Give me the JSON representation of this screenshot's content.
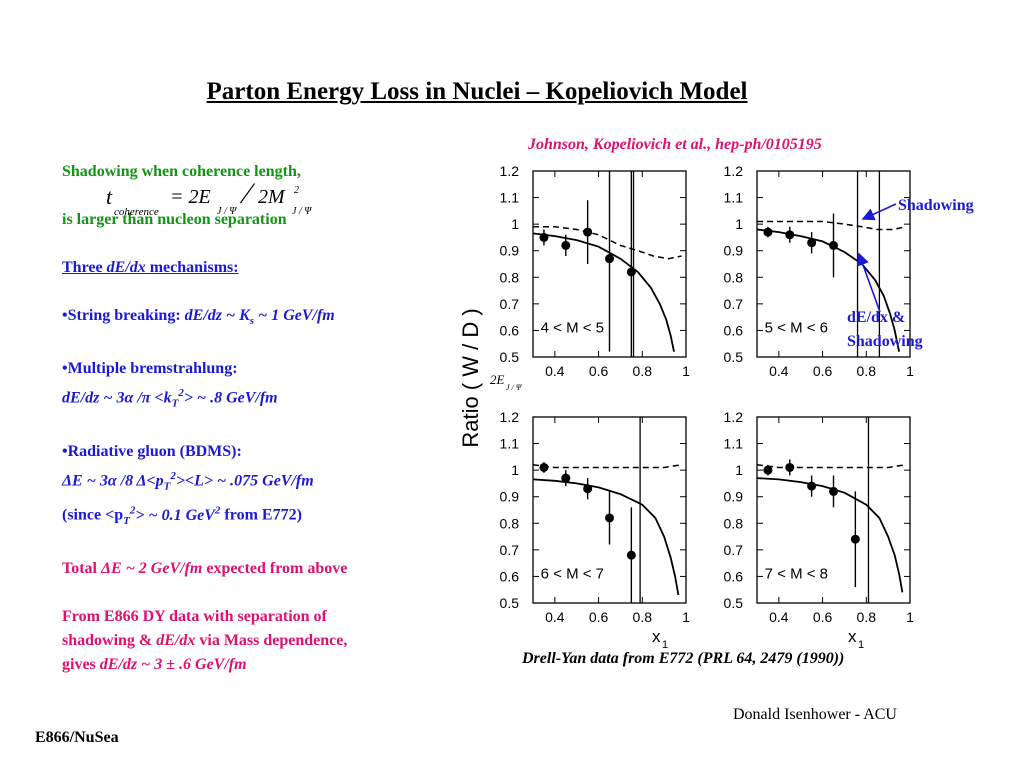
{
  "slide": {
    "title": "Parton Energy Loss in Nuclei – Kopeliovich Model",
    "citation": "Johnson, Kopeliovich et al., hep-ph/0105195",
    "caption": "Drell-Yan data from E772 (PRL 64, 2479 (1990))",
    "author": "Donald Isenhower - ACU",
    "footer": "E866/NuSea"
  },
  "left_text": {
    "line1": "Shadowing when coherence length,",
    "formula": {
      "t": "t",
      "sub": "coherence",
      "eq": "= 2E",
      "sub2": "J / Ψ",
      "slash": "⁄",
      "den": "2M",
      "sup": "2",
      "sub3": "J / Ψ"
    },
    "line2": "is larger than nucleon separation",
    "three_a": "Three ",
    "three_b": "dE/dx",
    "three_c": " mechanisms:",
    "string_a": "•String breaking: ",
    "string_b": "dE/dz ~ K",
    "string_sub": "s",
    "string_c": " ~ 1 GeV/fm",
    "brems_a": "•Multiple bremstrahlung:",
    "brems_b": "dE/dz ~ 3α /π <k",
    "brems_sub": "T",
    "brems_sup": "2",
    "brems_c": "> ~ .8 GeV/fm",
    "rad_a": "•Radiative gluon (BDMS):",
    "rad_b": "ΔE ~ 3α /8 Δ<p",
    "rad_sub": "T",
    "rad_sup": "2",
    "rad_c": "><L> ~ .075 GeV/fm",
    "since_a": "(since <p",
    "since_sub": "T",
    "since_sup": "2",
    "since_b": "> ~ 0.1 GeV",
    "since_sup2": "2",
    "since_c": " from E772)",
    "total_a": "Total ",
    "total_b": "ΔE ~ 2 GeV/fm",
    "total_c": "  expected from above",
    "from1": "From E866 DY data with separation of",
    "from2_a": "shadowing & ",
    "from2_b": "dE/dx",
    "from2_c": " via Mass dependence,",
    "from3_a": "gives ",
    "from3_b": "dE/dz ~ 3 ± .6 GeV/fm"
  },
  "annotations": {
    "shadowing": "Shadowing",
    "dedx_line1": "dE/dx &",
    "dedx_line2": "Shadowing",
    "two_e": "2E",
    "two_e_sub": "J / Ψ"
  },
  "colors": {
    "green": "#149414",
    "blue": "#1a1ad6",
    "magenta": "#e0106e"
  },
  "chart_data": {
    "type": "scatter",
    "ylabel": "Ratio ( W / D )",
    "xlabel_main": "x",
    "xlabel_sub": "1",
    "xlim": [
      0.3,
      1.0
    ],
    "ylim": [
      0.5,
      1.2
    ],
    "xticks": [
      "0.4",
      "0.6",
      "0.8",
      "1"
    ],
    "yticks": [
      "0.5",
      "0.6",
      "0.7",
      "0.8",
      "0.9",
      "1",
      "1.1",
      "1.2"
    ],
    "panels": [
      {
        "label": "4 < M < 5",
        "points": [
          {
            "x": 0.35,
            "y": 0.95,
            "err": 0.03
          },
          {
            "x": 0.45,
            "y": 0.92,
            "err": 0.04
          },
          {
            "x": 0.55,
            "y": 0.97,
            "err": 0.12
          },
          {
            "x": 0.65,
            "y": 0.87,
            "err": 0.35
          },
          {
            "x": 0.75,
            "y": 0.82,
            "err": 0.65
          }
        ],
        "vline_x": 0.76,
        "dashed": [
          [
            0.3,
            0.99
          ],
          [
            0.4,
            0.99
          ],
          [
            0.5,
            0.98
          ],
          [
            0.6,
            0.96
          ],
          [
            0.7,
            0.92
          ],
          [
            0.78,
            0.9
          ],
          [
            0.85,
            0.88
          ],
          [
            0.92,
            0.87
          ],
          [
            0.98,
            0.88
          ]
        ],
        "solid": [
          [
            0.3,
            0.965
          ],
          [
            0.4,
            0.955
          ],
          [
            0.5,
            0.94
          ],
          [
            0.6,
            0.915
          ],
          [
            0.7,
            0.87
          ],
          [
            0.78,
            0.82
          ],
          [
            0.84,
            0.76
          ],
          [
            0.88,
            0.7
          ],
          [
            0.91,
            0.64
          ],
          [
            0.93,
            0.58
          ],
          [
            0.945,
            0.52
          ]
        ]
      },
      {
        "label": "5 < M < 6",
        "points": [
          {
            "x": 0.35,
            "y": 0.97,
            "err": 0.02
          },
          {
            "x": 0.45,
            "y": 0.96,
            "err": 0.03
          },
          {
            "x": 0.55,
            "y": 0.93,
            "err": 0.04
          },
          {
            "x": 0.65,
            "y": 0.92,
            "err": 0.12
          }
        ],
        "vline_x": 0.76,
        "vline2_x": 0.86,
        "dashed": [
          [
            0.3,
            1.01
          ],
          [
            0.4,
            1.01
          ],
          [
            0.5,
            1.01
          ],
          [
            0.6,
            1.01
          ],
          [
            0.7,
            1.0
          ],
          [
            0.78,
            0.99
          ],
          [
            0.85,
            0.98
          ],
          [
            0.92,
            0.98
          ],
          [
            0.98,
            0.99
          ]
        ],
        "solid": [
          [
            0.3,
            0.98
          ],
          [
            0.4,
            0.97
          ],
          [
            0.5,
            0.955
          ],
          [
            0.6,
            0.935
          ],
          [
            0.7,
            0.895
          ],
          [
            0.78,
            0.85
          ],
          [
            0.84,
            0.79
          ],
          [
            0.88,
            0.73
          ],
          [
            0.91,
            0.66
          ],
          [
            0.93,
            0.6
          ],
          [
            0.95,
            0.52
          ]
        ]
      },
      {
        "label": "6 < M < 7",
        "points": [
          {
            "x": 0.35,
            "y": 1.01,
            "err": 0.02
          },
          {
            "x": 0.45,
            "y": 0.97,
            "err": 0.03
          },
          {
            "x": 0.55,
            "y": 0.93,
            "err": 0.04
          },
          {
            "x": 0.65,
            "y": 0.82,
            "err": 0.1
          },
          {
            "x": 0.75,
            "y": 0.68,
            "err": 0.18
          }
        ],
        "vline_x": 0.79,
        "dashed": [
          [
            0.3,
            1.02
          ],
          [
            0.4,
            1.01
          ],
          [
            0.5,
            1.01
          ],
          [
            0.6,
            1.01
          ],
          [
            0.7,
            1.01
          ],
          [
            0.8,
            1.01
          ],
          [
            0.9,
            1.01
          ],
          [
            0.98,
            1.02
          ]
        ],
        "solid": [
          [
            0.3,
            0.965
          ],
          [
            0.4,
            0.96
          ],
          [
            0.5,
            0.95
          ],
          [
            0.6,
            0.935
          ],
          [
            0.7,
            0.91
          ],
          [
            0.8,
            0.87
          ],
          [
            0.86,
            0.82
          ],
          [
            0.9,
            0.75
          ],
          [
            0.93,
            0.67
          ],
          [
            0.95,
            0.6
          ],
          [
            0.965,
            0.53
          ]
        ]
      },
      {
        "label": "7 < M < 8",
        "points": [
          {
            "x": 0.35,
            "y": 1.0,
            "err": 0.02
          },
          {
            "x": 0.45,
            "y": 1.01,
            "err": 0.03
          },
          {
            "x": 0.55,
            "y": 0.94,
            "err": 0.04
          },
          {
            "x": 0.65,
            "y": 0.92,
            "err": 0.06
          },
          {
            "x": 0.75,
            "y": 0.74,
            "err": 0.18
          }
        ],
        "vline_x": 0.81,
        "dashed": [
          [
            0.3,
            1.02
          ],
          [
            0.4,
            1.01
          ],
          [
            0.5,
            1.01
          ],
          [
            0.6,
            1.01
          ],
          [
            0.7,
            1.01
          ],
          [
            0.8,
            1.01
          ],
          [
            0.9,
            1.01
          ],
          [
            0.98,
            1.02
          ]
        ],
        "solid": [
          [
            0.3,
            0.97
          ],
          [
            0.4,
            0.965
          ],
          [
            0.5,
            0.955
          ],
          [
            0.6,
            0.94
          ],
          [
            0.7,
            0.915
          ],
          [
            0.8,
            0.87
          ],
          [
            0.86,
            0.82
          ],
          [
            0.9,
            0.75
          ],
          [
            0.93,
            0.68
          ],
          [
            0.95,
            0.61
          ],
          [
            0.965,
            0.54
          ]
        ]
      }
    ]
  }
}
